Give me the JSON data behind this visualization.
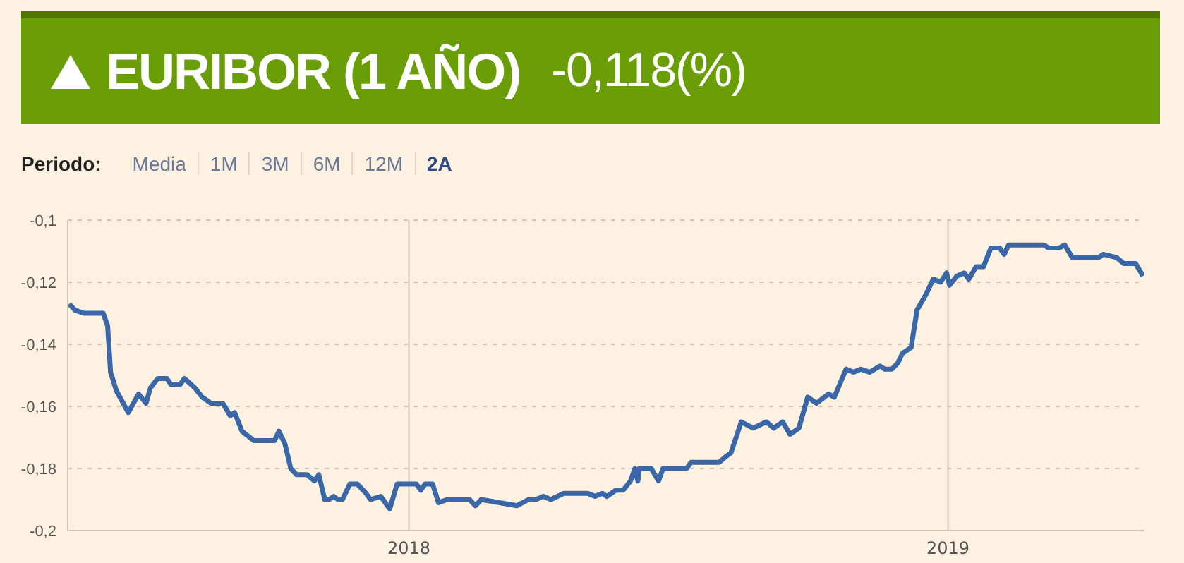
{
  "chart_data": {
    "type": "line",
    "title": "EURIBOR (1 AÑO)",
    "subtitle": "-0,118(%)",
    "annotations": [
      "Periodo:",
      "Media",
      "1M",
      "3M",
      "6M",
      "12M",
      "2A"
    ],
    "x": [
      "2017-05-16",
      "2017-05-20",
      "2017-05-26",
      "2017-06-08",
      "2017-06-11",
      "2017-06-13",
      "2017-06-17",
      "2017-06-25",
      "2017-07-02",
      "2017-07-07",
      "2017-07-10",
      "2017-07-15",
      "2017-07-21",
      "2017-07-24",
      "2017-07-30",
      "2017-08-02",
      "2017-08-09",
      "2017-08-14",
      "2017-08-20",
      "2017-08-28",
      "2017-09-02",
      "2017-09-05",
      "2017-09-10",
      "2017-09-18",
      "2017-10-02",
      "2017-10-05",
      "2017-10-09",
      "2017-10-13",
      "2017-10-17",
      "2017-10-24",
      "2017-10-29",
      "2017-11-01",
      "2017-11-05",
      "2017-11-08",
      "2017-11-11",
      "2017-11-14",
      "2017-11-17",
      "2017-11-22",
      "2017-11-27",
      "2017-12-03",
      "2017-12-06",
      "2017-12-13",
      "2017-12-19",
      "2017-12-24",
      "2018-01-03",
      "2018-01-06",
      "2018-01-09",
      "2018-01-12",
      "2018-01-17",
      "2018-01-21",
      "2018-01-27",
      "2018-02-11",
      "2018-02-15",
      "2018-02-19",
      "2018-03-15",
      "2018-03-23",
      "2018-03-28",
      "2018-04-02",
      "2018-04-07",
      "2018-04-16",
      "2018-05-02",
      "2018-05-07",
      "2018-05-12",
      "2018-05-15",
      "2018-05-21",
      "2018-05-26",
      "2018-05-31",
      "2018-06-03",
      "2018-06-05",
      "2018-06-06",
      "2018-06-14",
      "2018-06-19",
      "2018-06-22",
      "2018-07-08",
      "2018-07-11",
      "2018-07-30",
      "2018-08-04",
      "2018-08-07",
      "2018-08-14",
      "2018-08-22",
      "2018-08-31",
      "2018-09-05",
      "2018-09-11",
      "2018-09-16",
      "2018-09-22",
      "2018-09-28",
      "2018-10-04",
      "2018-10-12",
      "2018-10-16",
      "2018-10-24",
      "2018-10-29",
      "2018-11-03",
      "2018-11-09",
      "2018-11-16",
      "2018-11-19",
      "2018-11-24",
      "2018-11-28",
      "2018-12-01",
      "2018-12-07",
      "2018-12-11",
      "2018-12-17",
      "2018-12-22",
      "2018-12-27",
      "2018-12-31",
      "2019-01-02",
      "2019-01-07",
      "2019-01-12",
      "2019-01-15",
      "2019-01-20",
      "2019-01-25",
      "2019-01-30",
      "2019-02-05",
      "2019-02-08",
      "2019-02-11",
      "2019-03-07",
      "2019-03-10",
      "2019-03-17",
      "2019-03-21",
      "2019-03-26",
      "2019-04-13",
      "2019-04-16",
      "2019-04-25",
      "2019-04-30",
      "2019-05-08",
      "2019-05-13"
    ],
    "series": [
      {
        "color": "#3a67a8",
        "values": [
          -0.127,
          -0.129,
          -0.13,
          -0.13,
          -0.134,
          -0.149,
          -0.155,
          -0.162,
          -0.156,
          -0.159,
          -0.154,
          -0.151,
          -0.151,
          -0.153,
          -0.153,
          -0.151,
          -0.154,
          -0.157,
          -0.159,
          -0.159,
          -0.163,
          -0.162,
          -0.168,
          -0.171,
          -0.171,
          -0.168,
          -0.172,
          -0.18,
          -0.182,
          -0.182,
          -0.184,
          -0.182,
          -0.19,
          -0.19,
          -0.189,
          -0.19,
          -0.19,
          -0.185,
          -0.185,
          -0.188,
          -0.19,
          -0.189,
          -0.193,
          -0.185,
          -0.185,
          -0.185,
          -0.187,
          -0.185,
          -0.185,
          -0.191,
          -0.19,
          -0.19,
          -0.192,
          -0.19,
          -0.192,
          -0.19,
          -0.19,
          -0.189,
          -0.19,
          -0.188,
          -0.188,
          -0.189,
          -0.188,
          -0.189,
          -0.187,
          -0.187,
          -0.184,
          -0.18,
          -0.184,
          -0.18,
          -0.18,
          -0.184,
          -0.18,
          -0.18,
          -0.178,
          -0.178,
          -0.176,
          -0.175,
          -0.165,
          -0.167,
          -0.165,
          -0.167,
          -0.165,
          -0.169,
          -0.167,
          -0.157,
          -0.159,
          -0.156,
          -0.157,
          -0.148,
          -0.149,
          -0.148,
          -0.149,
          -0.147,
          -0.148,
          -0.148,
          -0.146,
          -0.143,
          -0.141,
          -0.129,
          -0.124,
          -0.119,
          -0.12,
          -0.117,
          -0.121,
          -0.118,
          -0.117,
          -0.119,
          -0.115,
          -0.115,
          -0.109,
          -0.109,
          -0.111,
          -0.108,
          -0.108,
          -0.109,
          -0.109,
          -0.108,
          -0.112,
          -0.112,
          -0.111,
          -0.112,
          -0.114,
          -0.114,
          -0.118
        ]
      }
    ],
    "xlim": [
      "2017-05-15",
      "2019-05-14"
    ],
    "xticks": [
      {
        "value": "2018-01-01",
        "label": "2018"
      },
      {
        "value": "2019-01-01",
        "label": "2019"
      }
    ],
    "ylim": [
      -0.2,
      -0.1
    ],
    "yticks": [
      {
        "value": -0.2,
        "label": "-0,2"
      },
      {
        "value": -0.18,
        "label": "-0,18"
      },
      {
        "value": -0.16,
        "label": "-0,16"
      },
      {
        "value": -0.14,
        "label": "-0,14"
      },
      {
        "value": -0.12,
        "label": "-0,12"
      },
      {
        "value": -0.1,
        "label": "-0,1"
      }
    ],
    "grid": true,
    "marker": "none",
    "line_style": "solid"
  }
}
